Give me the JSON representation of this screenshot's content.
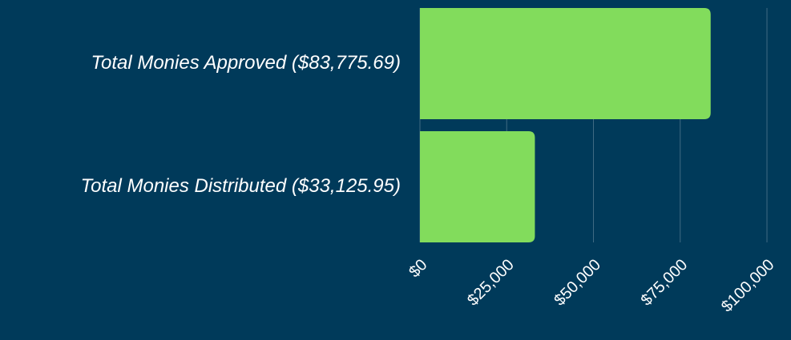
{
  "chart_data": {
    "type": "bar",
    "orientation": "horizontal",
    "categories": [
      "Total Monies Approved ($83,775.69)",
      "Total Monies Distributed ($33,125.95)"
    ],
    "values": [
      83775.69,
      33125.95
    ],
    "color": "#82dc5c",
    "xlim": [
      0,
      100000
    ],
    "xticks": [
      {
        "value": 0,
        "label": "$0"
      },
      {
        "value": 25000,
        "label": "$25,000"
      },
      {
        "value": 50000,
        "label": "$50,000"
      },
      {
        "value": 75000,
        "label": "$75,000"
      },
      {
        "value": 100000,
        "label": "$100,000"
      }
    ],
    "grid": true
  }
}
